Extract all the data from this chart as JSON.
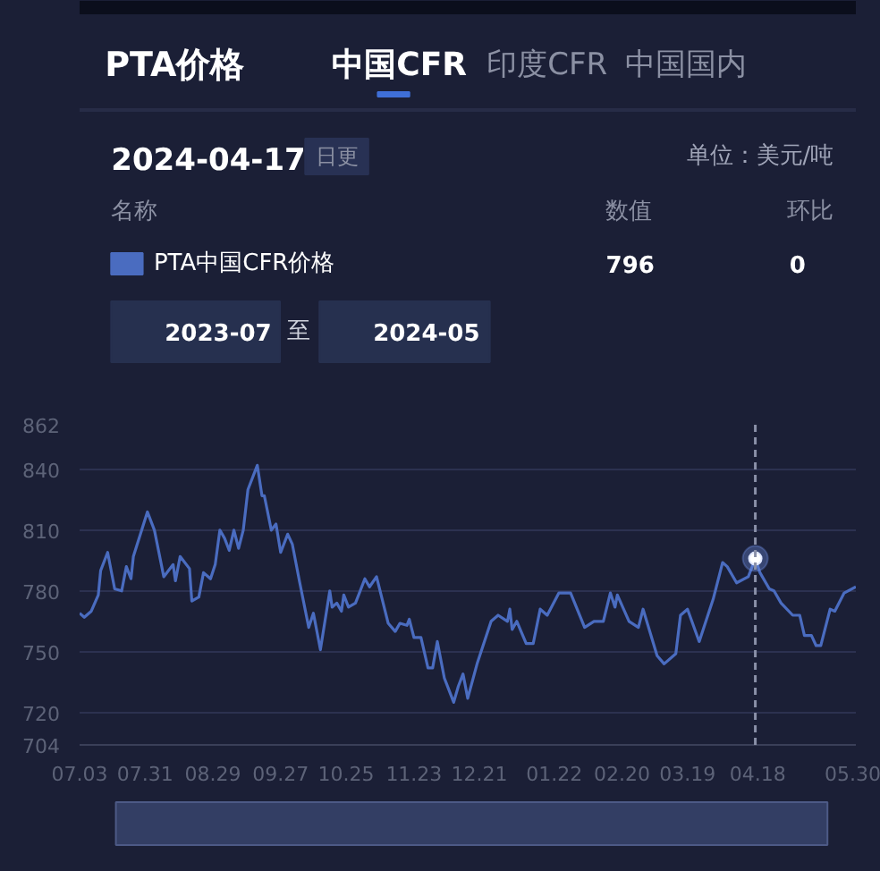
{
  "chart_data": {
    "type": "line",
    "title": "PTA价格",
    "annotations": [
      "中国CFR",
      "印度CFR",
      "中国国内",
      "2024-04-17",
      "日更",
      "单位：美元/吨",
      "名称",
      "数值",
      "环比",
      "796",
      "0",
      "2023-07",
      "至",
      "2024-05"
    ],
    "legend": "top",
    "grid": "y",
    "line_style": "solid",
    "xlim": [
      "2023-07-03",
      "2024-05-30"
    ],
    "xticks": [
      {
        "value": "2023-07-03",
        "label": "07.03"
      },
      {
        "value": "2023-07-31",
        "label": "07.31"
      },
      {
        "value": "2023-08-29",
        "label": "08.29"
      },
      {
        "value": "2023-09-27",
        "label": "09.27"
      },
      {
        "value": "2023-10-25",
        "label": "10.25"
      },
      {
        "value": "2023-11-23",
        "label": "11.23"
      },
      {
        "value": "2023-12-21",
        "label": "12.21"
      },
      {
        "value": "2024-01-22",
        "label": "01.22"
      },
      {
        "value": "2024-02-20",
        "label": "02.20"
      },
      {
        "value": "2024-03-19",
        "label": "03.19"
      },
      {
        "value": "2024-04-18",
        "label": "04.18"
      },
      {
        "value": "2024-05-30",
        "label": "05.30"
      }
    ],
    "ylim": [
      704,
      862
    ],
    "yticks": [
      704,
      720,
      750,
      780,
      810,
      840,
      862
    ],
    "ref_lines": [
      {
        "axis": "x",
        "value": "2024-04-17",
        "color": "#8a90a8",
        "line_style": "dashed"
      }
    ],
    "series": [
      {
        "name": "PTA中国CFR价格",
        "color": "#4a6cc0",
        "x": [
          "2023-07-03",
          "2023-07-05",
          "2023-07-08",
          "2023-07-11",
          "2023-07-12",
          "2023-07-15",
          "2023-07-18",
          "2023-07-21",
          "2023-07-23",
          "2023-07-25",
          "2023-07-26",
          "2023-08-01",
          "2023-08-04",
          "2023-08-08",
          "2023-08-12",
          "2023-08-13",
          "2023-08-15",
          "2023-08-19",
          "2023-08-20",
          "2023-08-23",
          "2023-08-25",
          "2023-08-28",
          "2023-08-30",
          "2023-09-01",
          "2023-09-03",
          "2023-09-05",
          "2023-09-07",
          "2023-09-09",
          "2023-09-11",
          "2023-09-13",
          "2023-09-17",
          "2023-09-19",
          "2023-09-20",
          "2023-09-23",
          "2023-09-25",
          "2023-09-27",
          "2023-09-30",
          "2023-10-02",
          "2023-10-05",
          "2023-10-09",
          "2023-10-11",
          "2023-10-14",
          "2023-10-18",
          "2023-10-19",
          "2023-10-21",
          "2023-10-23",
          "2023-10-24",
          "2023-10-26",
          "2023-10-29",
          "2023-11-02",
          "2023-11-04",
          "2023-11-07",
          "2023-11-12",
          "2023-11-15",
          "2023-11-17",
          "2023-11-20",
          "2023-11-21",
          "2023-11-23",
          "2023-11-26",
          "2023-11-29",
          "2023-12-01",
          "2023-12-03",
          "2023-12-06",
          "2023-12-10",
          "2023-12-12",
          "2023-12-14",
          "2023-12-16",
          "2023-12-20",
          "2023-12-26",
          "2023-12-29",
          "2024-01-02",
          "2024-01-03",
          "2024-01-04",
          "2024-01-06",
          "2024-01-10",
          "2024-01-13",
          "2024-01-16",
          "2024-01-19",
          "2024-01-24",
          "2024-01-29",
          "2024-02-04",
          "2024-02-08",
          "2024-02-12",
          "2024-02-15",
          "2024-02-17",
          "2024-02-18",
          "2024-02-23",
          "2024-02-27",
          "2024-02-29",
          "2024-03-06",
          "2024-03-09",
          "2024-03-14",
          "2024-03-16",
          "2024-03-19",
          "2024-03-24",
          "2024-03-30",
          "2024-04-03",
          "2024-04-05",
          "2024-04-09",
          "2024-04-14",
          "2024-04-17",
          "2024-04-19",
          "2024-04-23",
          "2024-04-25",
          "2024-04-28",
          "2024-05-03",
          "2024-05-06",
          "2024-05-08",
          "2024-05-11",
          "2024-05-13",
          "2024-05-15",
          "2024-05-19",
          "2024-05-21",
          "2024-05-25",
          "2024-05-30"
        ],
        "values": [
          769,
          767,
          770,
          778,
          790,
          799,
          781,
          780,
          792,
          786,
          797,
          819,
          810,
          787,
          793,
          785,
          797,
          791,
          775,
          777,
          789,
          786,
          793,
          810,
          806,
          800,
          810,
          801,
          810,
          830,
          842,
          827,
          827,
          810,
          813,
          799,
          808,
          803,
          785,
          762,
          769,
          751,
          780,
          772,
          774,
          770,
          778,
          772,
          774,
          786,
          782,
          787,
          764,
          760,
          764,
          763,
          766,
          757,
          757,
          742,
          742,
          755,
          737,
          725,
          733,
          739,
          727,
          744,
          765,
          768,
          765,
          771,
          761,
          765,
          754,
          754,
          771,
          768,
          779,
          779,
          762,
          765,
          765,
          779,
          772,
          778,
          765,
          762,
          771,
          748,
          744,
          749,
          768,
          771,
          755,
          776,
          794,
          792,
          784,
          787,
          796,
          789,
          781,
          780,
          774,
          768,
          768,
          758,
          758,
          753,
          753,
          771,
          770,
          779,
          782
        ]
      }
    ]
  }
}
